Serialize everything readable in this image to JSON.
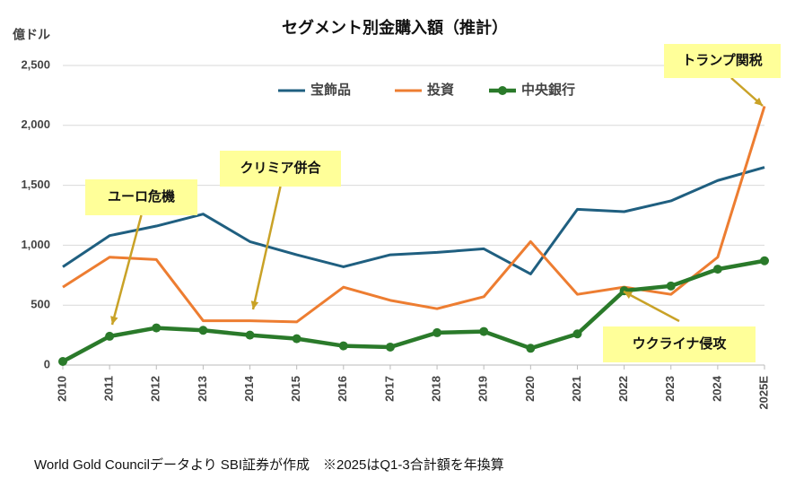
{
  "chart_data": {
    "type": "line",
    "title": "セグメント別金購入額（推計）",
    "y_label": "億ドル",
    "footnote": "World Gold Councilデータより SBI証券が作成　※2025はQ1-3合計額を年換算",
    "categories": [
      "2010",
      "2011",
      "2012",
      "2013",
      "2014",
      "2015",
      "2016",
      "2017",
      "2018",
      "2019",
      "2020",
      "2021",
      "2022",
      "2023",
      "2024",
      "2025E"
    ],
    "series": [
      {
        "name": "宝飾品",
        "color": "#1f5f80",
        "values": [
          820,
          1080,
          1160,
          1260,
          1030,
          920,
          820,
          920,
          940,
          970,
          760,
          1300,
          1280,
          1370,
          1540,
          1650
        ]
      },
      {
        "name": "投資",
        "color": "#ed7d31",
        "values": [
          650,
          900,
          880,
          370,
          370,
          360,
          650,
          540,
          470,
          570,
          1030,
          590,
          650,
          590,
          900,
          2160
        ]
      },
      {
        "name": "中央銀行",
        "color": "#2a7a2a",
        "values": [
          30,
          240,
          310,
          290,
          250,
          220,
          160,
          150,
          270,
          280,
          140,
          260,
          620,
          660,
          800,
          870
        ],
        "markers": true
      }
    ],
    "ylim": [
      0,
      2500
    ],
    "yticks": [
      0,
      500,
      {
        "value": 1000,
        "label": "1,000"
      },
      {
        "value": 1500,
        "label": "1,500"
      },
      {
        "value": 2000,
        "label": "2,000"
      },
      {
        "value": 2500,
        "label": "2,500"
      }
    ],
    "grid": true,
    "annotations": [
      {
        "text": "ユーロ危機",
        "category": 1,
        "series": 2
      },
      {
        "text": "クリミア併合",
        "category": 4,
        "series": 1
      },
      {
        "text": "ウクライナ侵攻",
        "category": 12,
        "series": 2
      },
      {
        "text": "トランプ関税",
        "category": 15,
        "series": 1
      }
    ]
  }
}
